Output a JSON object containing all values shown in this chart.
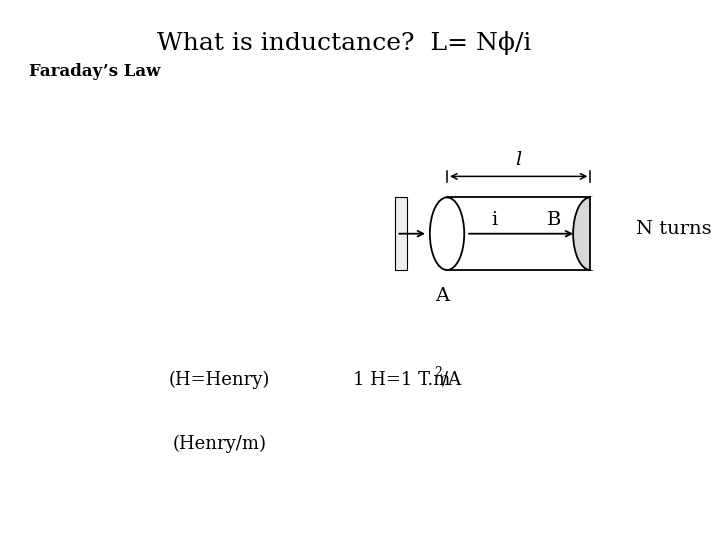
{
  "title": "What is inductance?  L= Nϕ/i",
  "faraday_law": "Faraday’s Law",
  "henry_label": "(H=Henry)",
  "henry_per_m": "(Henry/m)",
  "henry_eq": "1 H=1 T.m",
  "henry_eq_super": "2",
  "henry_eq_end": "/A",
  "n_turns": "N turns",
  "label_l": "l",
  "label_i": "i",
  "label_b": "B",
  "label_a": "A",
  "bg_color": "#ffffff",
  "text_color": "#000000",
  "title_fontsize": 18,
  "body_fontsize": 13,
  "faraday_fontsize": 12,
  "n_turns_fontsize": 14
}
